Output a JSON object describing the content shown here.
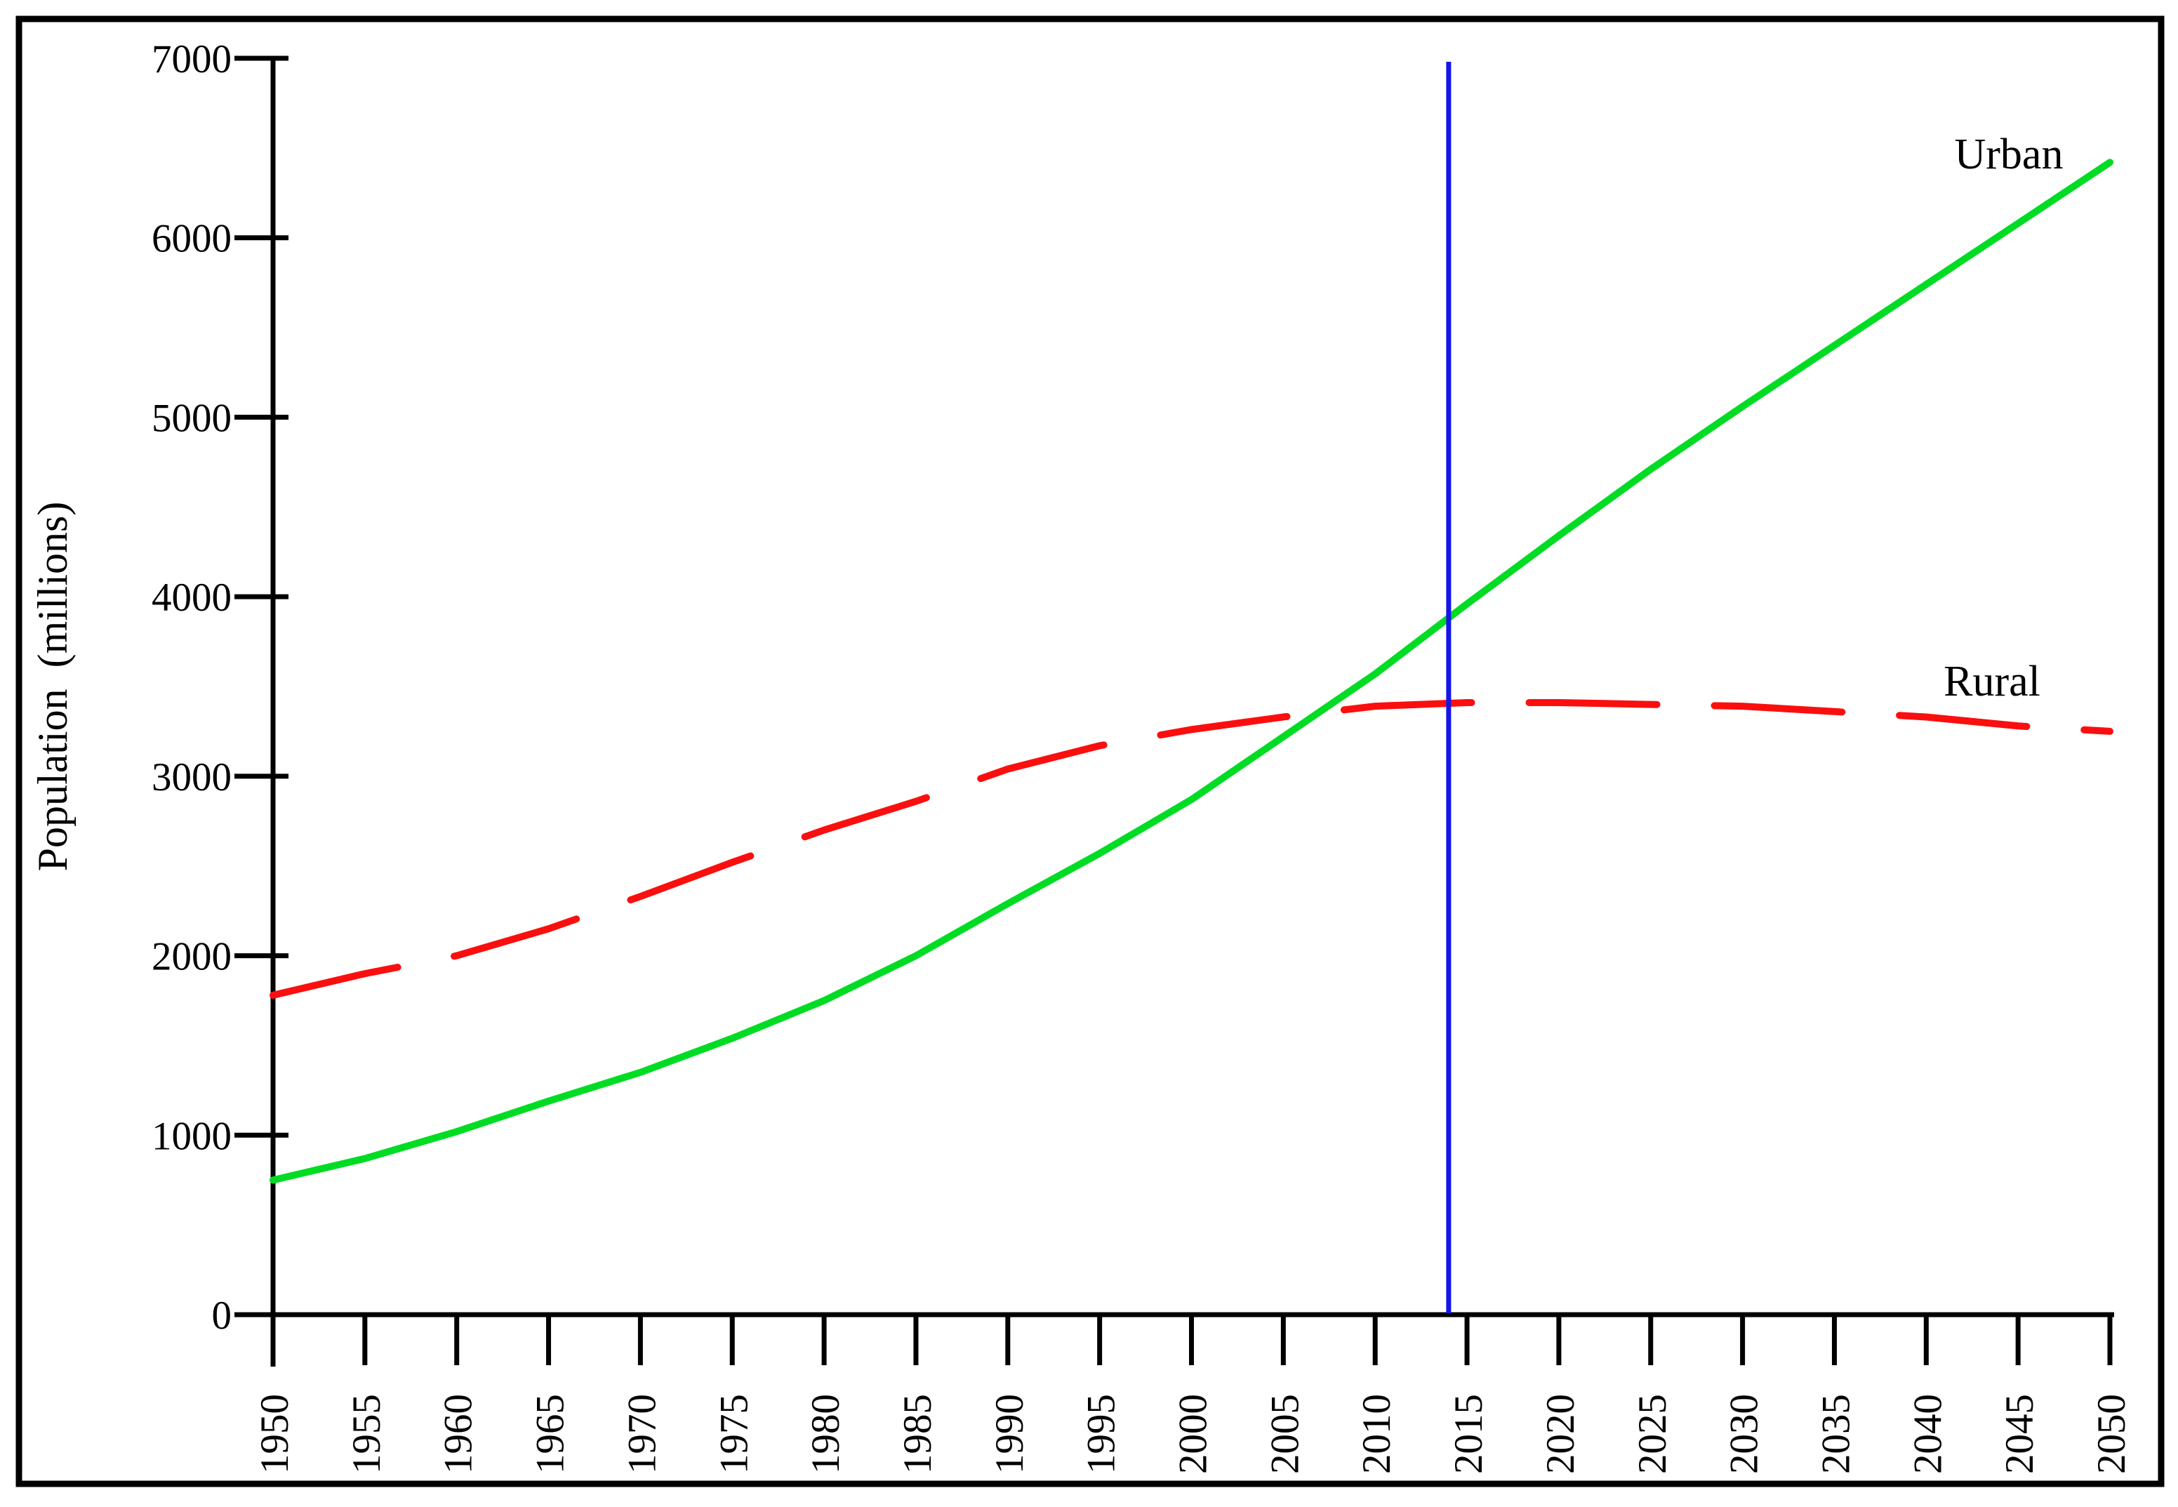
{
  "chart_data": {
    "type": "line",
    "title": "",
    "xlabel": "",
    "ylabel": "Population  (millions)",
    "xlim": [
      1950,
      2050
    ],
    "ylim": [
      0,
      7000
    ],
    "grid": false,
    "legend": "inline-labels",
    "x": [
      1950,
      1955,
      1960,
      1965,
      1970,
      1975,
      1980,
      1985,
      1990,
      1995,
      2000,
      2005,
      2010,
      2015,
      2020,
      2025,
      2030,
      2035,
      2040,
      2045,
      2050
    ],
    "xticks": [
      1950,
      1955,
      1960,
      1965,
      1970,
      1975,
      1980,
      1985,
      1990,
      1995,
      2000,
      2005,
      2010,
      2015,
      2020,
      2025,
      2030,
      2035,
      2040,
      2045,
      2050
    ],
    "yticks": [
      0,
      1000,
      2000,
      3000,
      4000,
      5000,
      6000,
      7000
    ],
    "series": [
      {
        "name": "Urban",
        "style": "solid",
        "color": "#00DC23",
        "values": [
          750,
          870,
          1020,
          1190,
          1350,
          1540,
          1750,
          2000,
          2290,
          2570,
          2870,
          3220,
          3570,
          3960,
          4340,
          4710,
          5060,
          5400,
          5740,
          6080,
          6420
        ]
      },
      {
        "name": "Rural",
        "style": "dashed",
        "color": "#FA0F0F",
        "values": [
          1780,
          1900,
          2000,
          2150,
          2330,
          2520,
          2700,
          2860,
          3040,
          3170,
          3260,
          3330,
          3390,
          3410,
          3410,
          3400,
          3390,
          3360,
          3330,
          3280,
          3250
        ]
      }
    ],
    "annotations": [
      {
        "type": "vline",
        "x": 2014,
        "color": "#1414E8"
      }
    ]
  },
  "colors": {
    "axis": "#000000",
    "border": "#000000",
    "background": "#FFFFFF"
  }
}
